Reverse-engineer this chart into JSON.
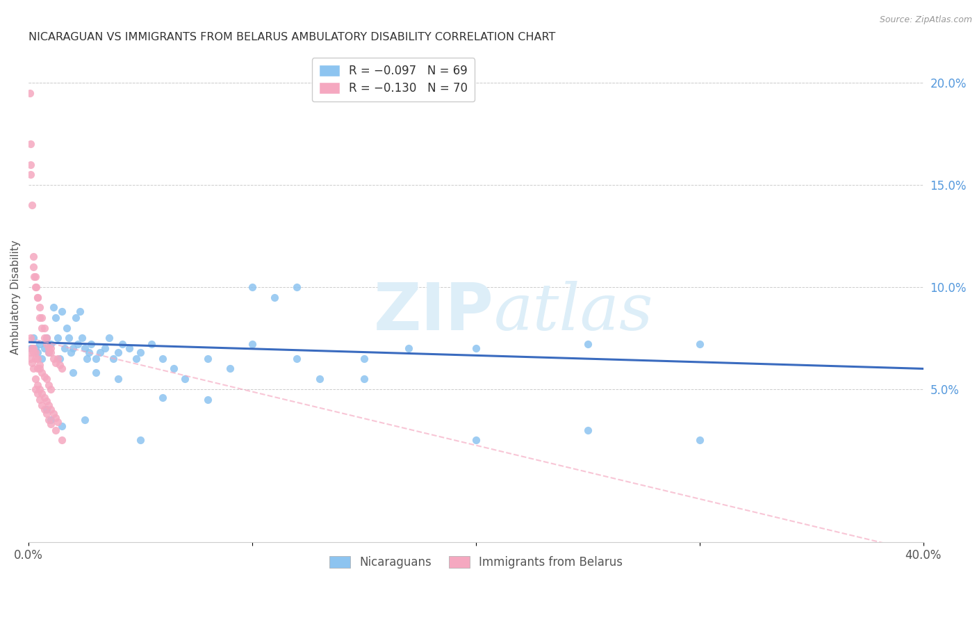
{
  "title": "NICARAGUAN VS IMMIGRANTS FROM BELARUS AMBULATORY DISABILITY CORRELATION CHART",
  "source": "Source: ZipAtlas.com",
  "ylabel": "Ambulatory Disability",
  "right_yticks": [
    "5.0%",
    "10.0%",
    "15.0%",
    "20.0%"
  ],
  "right_ytick_vals": [
    0.05,
    0.1,
    0.15,
    0.2
  ],
  "legend_label1": "R = −0.097   N = 69",
  "legend_label2": "R = −0.130   N = 70",
  "legend_labels": [
    "Nicaraguans",
    "Immigrants from Belarus"
  ],
  "nicaraguan_color": "#8dc4f0",
  "belarus_color": "#f5a8c0",
  "trend_nicaraguan_color": "#3a6bbf",
  "trend_belarus_color": "#f5a8c0",
  "watermark_color": "#ddeef8",
  "xlim": [
    0.0,
    0.4
  ],
  "ylim": [
    -0.025,
    0.215
  ],
  "nicaraguan_x": [
    0.001,
    0.002,
    0.003,
    0.004,
    0.005,
    0.006,
    0.007,
    0.008,
    0.009,
    0.01,
    0.011,
    0.012,
    0.013,
    0.014,
    0.015,
    0.016,
    0.017,
    0.018,
    0.019,
    0.02,
    0.021,
    0.022,
    0.023,
    0.024,
    0.025,
    0.026,
    0.027,
    0.028,
    0.03,
    0.032,
    0.034,
    0.036,
    0.038,
    0.04,
    0.042,
    0.045,
    0.048,
    0.05,
    0.055,
    0.06,
    0.065,
    0.07,
    0.08,
    0.09,
    0.1,
    0.11,
    0.12,
    0.13,
    0.15,
    0.17,
    0.2,
    0.25,
    0.3,
    0.008,
    0.01,
    0.015,
    0.02,
    0.025,
    0.03,
    0.04,
    0.05,
    0.06,
    0.08,
    0.1,
    0.12,
    0.15,
    0.2,
    0.25,
    0.3
  ],
  "nicaraguan_y": [
    0.07,
    0.075,
    0.07,
    0.068,
    0.072,
    0.065,
    0.07,
    0.075,
    0.068,
    0.072,
    0.09,
    0.085,
    0.075,
    0.065,
    0.088,
    0.07,
    0.08,
    0.075,
    0.068,
    0.07,
    0.085,
    0.072,
    0.088,
    0.075,
    0.07,
    0.065,
    0.068,
    0.072,
    0.065,
    0.068,
    0.07,
    0.075,
    0.065,
    0.068,
    0.072,
    0.07,
    0.065,
    0.068,
    0.072,
    0.065,
    0.06,
    0.055,
    0.065,
    0.06,
    0.1,
    0.095,
    0.1,
    0.055,
    0.065,
    0.07,
    0.07,
    0.072,
    0.072,
    0.04,
    0.035,
    0.032,
    0.058,
    0.035,
    0.058,
    0.055,
    0.025,
    0.046,
    0.045,
    0.072,
    0.065,
    0.055,
    0.025,
    0.03,
    0.025
  ],
  "belarus_x": [
    0.0005,
    0.0008,
    0.001,
    0.001,
    0.0015,
    0.002,
    0.002,
    0.0025,
    0.003,
    0.003,
    0.0035,
    0.004,
    0.004,
    0.005,
    0.005,
    0.006,
    0.006,
    0.007,
    0.007,
    0.008,
    0.008,
    0.009,
    0.009,
    0.01,
    0.01,
    0.011,
    0.012,
    0.013,
    0.014,
    0.015,
    0.001,
    0.0015,
    0.002,
    0.003,
    0.004,
    0.005,
    0.006,
    0.007,
    0.008,
    0.009,
    0.01,
    0.002,
    0.003,
    0.004,
    0.005,
    0.001,
    0.0008,
    0.0015,
    0.002,
    0.003,
    0.004,
    0.005,
    0.006,
    0.007,
    0.008,
    0.009,
    0.01,
    0.011,
    0.012,
    0.013,
    0.003,
    0.004,
    0.005,
    0.006,
    0.007,
    0.008,
    0.009,
    0.01,
    0.012,
    0.015
  ],
  "belarus_y": [
    0.195,
    0.17,
    0.16,
    0.155,
    0.14,
    0.115,
    0.11,
    0.105,
    0.105,
    0.1,
    0.1,
    0.095,
    0.095,
    0.09,
    0.085,
    0.085,
    0.08,
    0.08,
    0.075,
    0.075,
    0.072,
    0.07,
    0.068,
    0.07,
    0.068,
    0.065,
    0.063,
    0.065,
    0.062,
    0.06,
    0.075,
    0.07,
    0.068,
    0.065,
    0.06,
    0.062,
    0.058,
    0.056,
    0.055,
    0.052,
    0.05,
    0.07,
    0.068,
    0.065,
    0.06,
    0.068,
    0.065,
    0.063,
    0.06,
    0.055,
    0.052,
    0.05,
    0.048,
    0.046,
    0.044,
    0.042,
    0.04,
    0.038,
    0.036,
    0.034,
    0.05,
    0.048,
    0.045,
    0.042,
    0.04,
    0.038,
    0.035,
    0.033,
    0.03,
    0.025
  ]
}
